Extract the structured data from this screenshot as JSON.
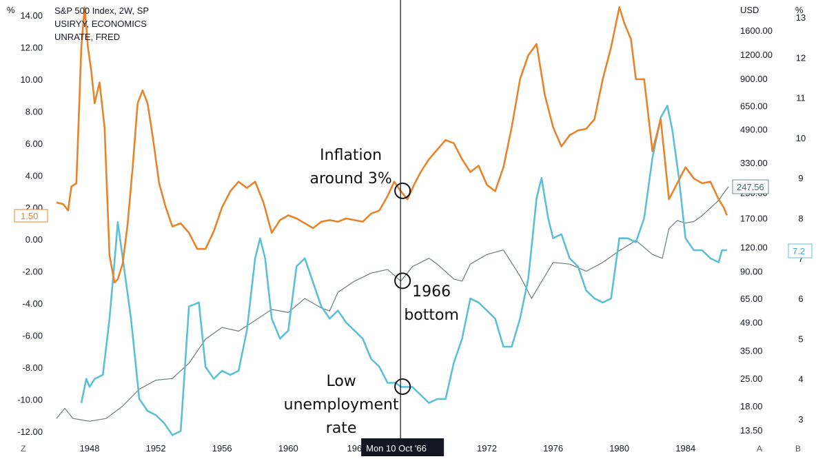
{
  "chart_data": {
    "type": "line",
    "legend": [
      "S&P 500 Index, 2W, SP",
      "USIRYY, ECONOMICS",
      "UNRATE, FRED"
    ],
    "left_axis": {
      "unit": "%",
      "range": [
        -12,
        14
      ],
      "ticks": [
        "14.00",
        "12.00",
        "10.00",
        "8.00",
        "6.00",
        "4.00",
        "2.00",
        "0.00",
        "-2.00",
        "-4.00",
        "-6.00",
        "-8.00",
        "-10.00",
        "-12.00"
      ]
    },
    "price_axis": {
      "unit": "USD",
      "scale": "log",
      "ticks": [
        "1600.00",
        "1200.00",
        "900.00",
        "650.00",
        "490.00",
        "330.00",
        "230.00",
        "170.00",
        "120.00",
        "90.00",
        "65.00",
        "49.00",
        "35.00",
        "25.00",
        "18.00",
        "13.50"
      ]
    },
    "right_axis": {
      "unit": "%",
      "range": [
        2.5,
        13
      ],
      "ticks": [
        "13",
        "12",
        "11",
        "10",
        "9",
        "8",
        "7",
        "6",
        "5",
        "4",
        "3"
      ]
    },
    "x_axis": {
      "range": [
        1945.5,
        1986.8
      ],
      "ticks": [
        "1948",
        "1952",
        "1956",
        "1960",
        "196",
        "1972",
        "1976",
        "1980",
        "1984"
      ]
    },
    "crosshair": {
      "year": 1966.78,
      "label": "Mon 10 Oct '66"
    },
    "badges": {
      "inflation_last": "1.50",
      "sp500_last": "247.56",
      "unrate_last": "7.2"
    },
    "corner_buttons": {
      "left": "Z",
      "price_scale": "A",
      "right": "B"
    },
    "series": [
      {
        "name": "USIRYY, ECONOMICS",
        "axis": "left",
        "color": "#e8832a",
        "x": [
          1946.0,
          1946.4,
          1946.7,
          1946.9,
          1947.2,
          1947.5,
          1947.7,
          1947.9,
          1948.1,
          1948.3,
          1948.6,
          1948.9,
          1949.2,
          1949.5,
          1949.7,
          1950.0,
          1950.3,
          1950.6,
          1950.9,
          1951.2,
          1951.5,
          1951.8,
          1952.2,
          1952.6,
          1953.0,
          1953.5,
          1954.0,
          1954.5,
          1955.0,
          1955.5,
          1956.0,
          1956.5,
          1957.0,
          1957.5,
          1958.0,
          1958.5,
          1959.0,
          1959.5,
          1960.0,
          1960.5,
          1961.0,
          1961.5,
          1962.0,
          1962.5,
          1963.0,
          1963.5,
          1964.0,
          1964.5,
          1965.0,
          1965.5,
          1966.0,
          1966.4,
          1966.8,
          1967.2,
          1967.6,
          1968.0,
          1968.5,
          1969.0,
          1969.5,
          1970.0,
          1970.5,
          1971.0,
          1971.5,
          1972.0,
          1972.5,
          1973.0,
          1973.5,
          1974.0,
          1974.5,
          1975.0,
          1975.5,
          1976.0,
          1976.5,
          1977.0,
          1977.5,
          1978.0,
          1978.5,
          1979.0,
          1979.5,
          1980.0,
          1980.3,
          1980.7,
          1981.0,
          1981.5,
          1982.0,
          1982.5,
          1983.0,
          1983.5,
          1984.0,
          1984.5,
          1985.0,
          1985.5,
          1986.0,
          1986.3,
          1986.5
        ],
        "values": [
          2.3,
          2.2,
          1.8,
          3.3,
          3.5,
          12.0,
          14.5,
          12.0,
          10.5,
          8.5,
          9.8,
          7.0,
          -1.0,
          -2.7,
          -2.5,
          -1.5,
          1.0,
          4.5,
          8.5,
          9.3,
          8.5,
          6.5,
          3.5,
          2.0,
          0.8,
          1.0,
          0.4,
          -0.6,
          -0.6,
          0.5,
          2.0,
          3.0,
          3.6,
          3.2,
          3.6,
          2.3,
          0.4,
          1.2,
          1.5,
          1.3,
          1.0,
          0.7,
          1.1,
          1.2,
          1.1,
          1.3,
          1.2,
          1.1,
          1.6,
          1.8,
          2.7,
          3.6,
          3.0,
          2.5,
          3.4,
          4.2,
          5.0,
          5.6,
          6.2,
          6.0,
          5.0,
          4.2,
          4.6,
          3.4,
          3.0,
          4.5,
          7.0,
          10.0,
          11.5,
          12.2,
          9.0,
          7.0,
          5.8,
          6.5,
          6.8,
          6.9,
          7.5,
          10.0,
          12.0,
          14.5,
          13.5,
          12.5,
          10.0,
          10.0,
          5.5,
          7.5,
          2.5,
          3.5,
          4.5,
          3.8,
          3.5,
          3.6,
          2.5,
          2.0,
          1.5
        ]
      },
      {
        "name": "UNRATE, FRED",
        "axis": "right",
        "color": "#5bc0d6",
        "x": [
          1947.5,
          1947.8,
          1948.0,
          1948.3,
          1948.8,
          1949.2,
          1949.5,
          1949.7,
          1950.0,
          1950.5,
          1951.0,
          1951.5,
          1952.0,
          1952.5,
          1953.0,
          1953.5,
          1954.0,
          1954.6,
          1955.0,
          1955.5,
          1956.0,
          1956.5,
          1957.0,
          1957.5,
          1958.0,
          1958.3,
          1958.6,
          1959.0,
          1959.5,
          1960.0,
          1960.5,
          1961.0,
          1961.5,
          1962.0,
          1962.5,
          1963.0,
          1963.5,
          1964.0,
          1964.5,
          1965.0,
          1965.5,
          1966.0,
          1966.5,
          1966.8,
          1967.5,
          1968.0,
          1968.5,
          1969.0,
          1969.5,
          1970.0,
          1970.5,
          1971.0,
          1971.5,
          1972.0,
          1972.5,
          1973.0,
          1973.5,
          1974.0,
          1974.5,
          1975.0,
          1975.3,
          1975.7,
          1976.0,
          1976.5,
          1977.0,
          1977.5,
          1978.0,
          1978.5,
          1979.0,
          1979.5,
          1980.0,
          1980.5,
          1981.0,
          1981.5,
          1982.0,
          1982.5,
          1982.9,
          1983.2,
          1983.6,
          1984.0,
          1984.5,
          1985.0,
          1985.5,
          1986.0,
          1986.2,
          1986.5
        ],
        "values": [
          3.4,
          4.0,
          3.8,
          4.0,
          4.1,
          5.5,
          6.9,
          7.9,
          7.0,
          5.5,
          3.5,
          3.2,
          3.1,
          2.9,
          2.6,
          2.7,
          5.8,
          5.9,
          4.3,
          4.0,
          4.2,
          4.1,
          4.2,
          5.2,
          7.0,
          7.5,
          7.0,
          5.5,
          5.0,
          5.2,
          6.8,
          7.0,
          6.4,
          5.8,
          5.5,
          5.7,
          5.4,
          5.2,
          5.0,
          4.5,
          4.3,
          3.9,
          3.9,
          3.8,
          3.8,
          3.6,
          3.4,
          3.5,
          3.5,
          4.4,
          5.0,
          6.0,
          5.9,
          5.7,
          5.5,
          4.8,
          4.8,
          5.5,
          6.5,
          8.5,
          9.0,
          8.0,
          7.5,
          7.6,
          7.0,
          6.8,
          6.2,
          6.0,
          5.9,
          6.0,
          7.5,
          7.5,
          7.4,
          8.0,
          9.5,
          10.5,
          10.8,
          10.2,
          9.0,
          7.5,
          7.2,
          7.2,
          7.0,
          6.9,
          7.2,
          7.2
        ]
      },
      {
        "name": "S&P 500 Index, 2W, SP",
        "axis": "price",
        "color": "#6b7a7a",
        "x": [
          1946.0,
          1946.5,
          1947.0,
          1948.0,
          1949.0,
          1950.0,
          1951.0,
          1952.0,
          1953.0,
          1954.0,
          1955.0,
          1956.0,
          1957.0,
          1958.0,
          1959.0,
          1960.0,
          1961.0,
          1962.0,
          1962.5,
          1963.0,
          1964.0,
          1965.0,
          1966.0,
          1966.8,
          1967.5,
          1968.0,
          1968.5,
          1969.0,
          1970.0,
          1970.5,
          1971.0,
          1972.0,
          1973.0,
          1974.0,
          1974.7,
          1975.0,
          1976.0,
          1977.0,
          1978.0,
          1979.0,
          1980.0,
          1981.0,
          1982.0,
          1982.6,
          1983.0,
          1983.5,
          1984.0,
          1984.5,
          1985.0,
          1986.0,
          1986.4,
          1986.6
        ],
        "values": [
          15.5,
          17.5,
          15.5,
          15.0,
          15.5,
          18.0,
          22.0,
          24.5,
          25.0,
          30.0,
          40.0,
          46.0,
          44.0,
          50.0,
          57.0,
          55.0,
          65.0,
          58.0,
          56.0,
          70.0,
          80.0,
          88.0,
          92.0,
          80.0,
          95.0,
          100.0,
          105.0,
          98.0,
          82.0,
          80.0,
          98.0,
          110.0,
          116.0,
          85.0,
          65.0,
          72.0,
          100.0,
          98.0,
          90.0,
          100.0,
          115.0,
          130.0,
          110.0,
          105.0,
          150.0,
          165.0,
          160.0,
          163.0,
          175.0,
          210.0,
          235.0,
          247.56
        ]
      }
    ],
    "annotations": [
      {
        "id": "inflation",
        "lines": [
          "Inflation",
          "around 3%"
        ]
      },
      {
        "id": "bottom",
        "lines": [
          "1966",
          "bottom"
        ]
      },
      {
        "id": "unemployment",
        "lines": [
          "Low",
          "unemployment",
          "rate"
        ]
      }
    ]
  }
}
